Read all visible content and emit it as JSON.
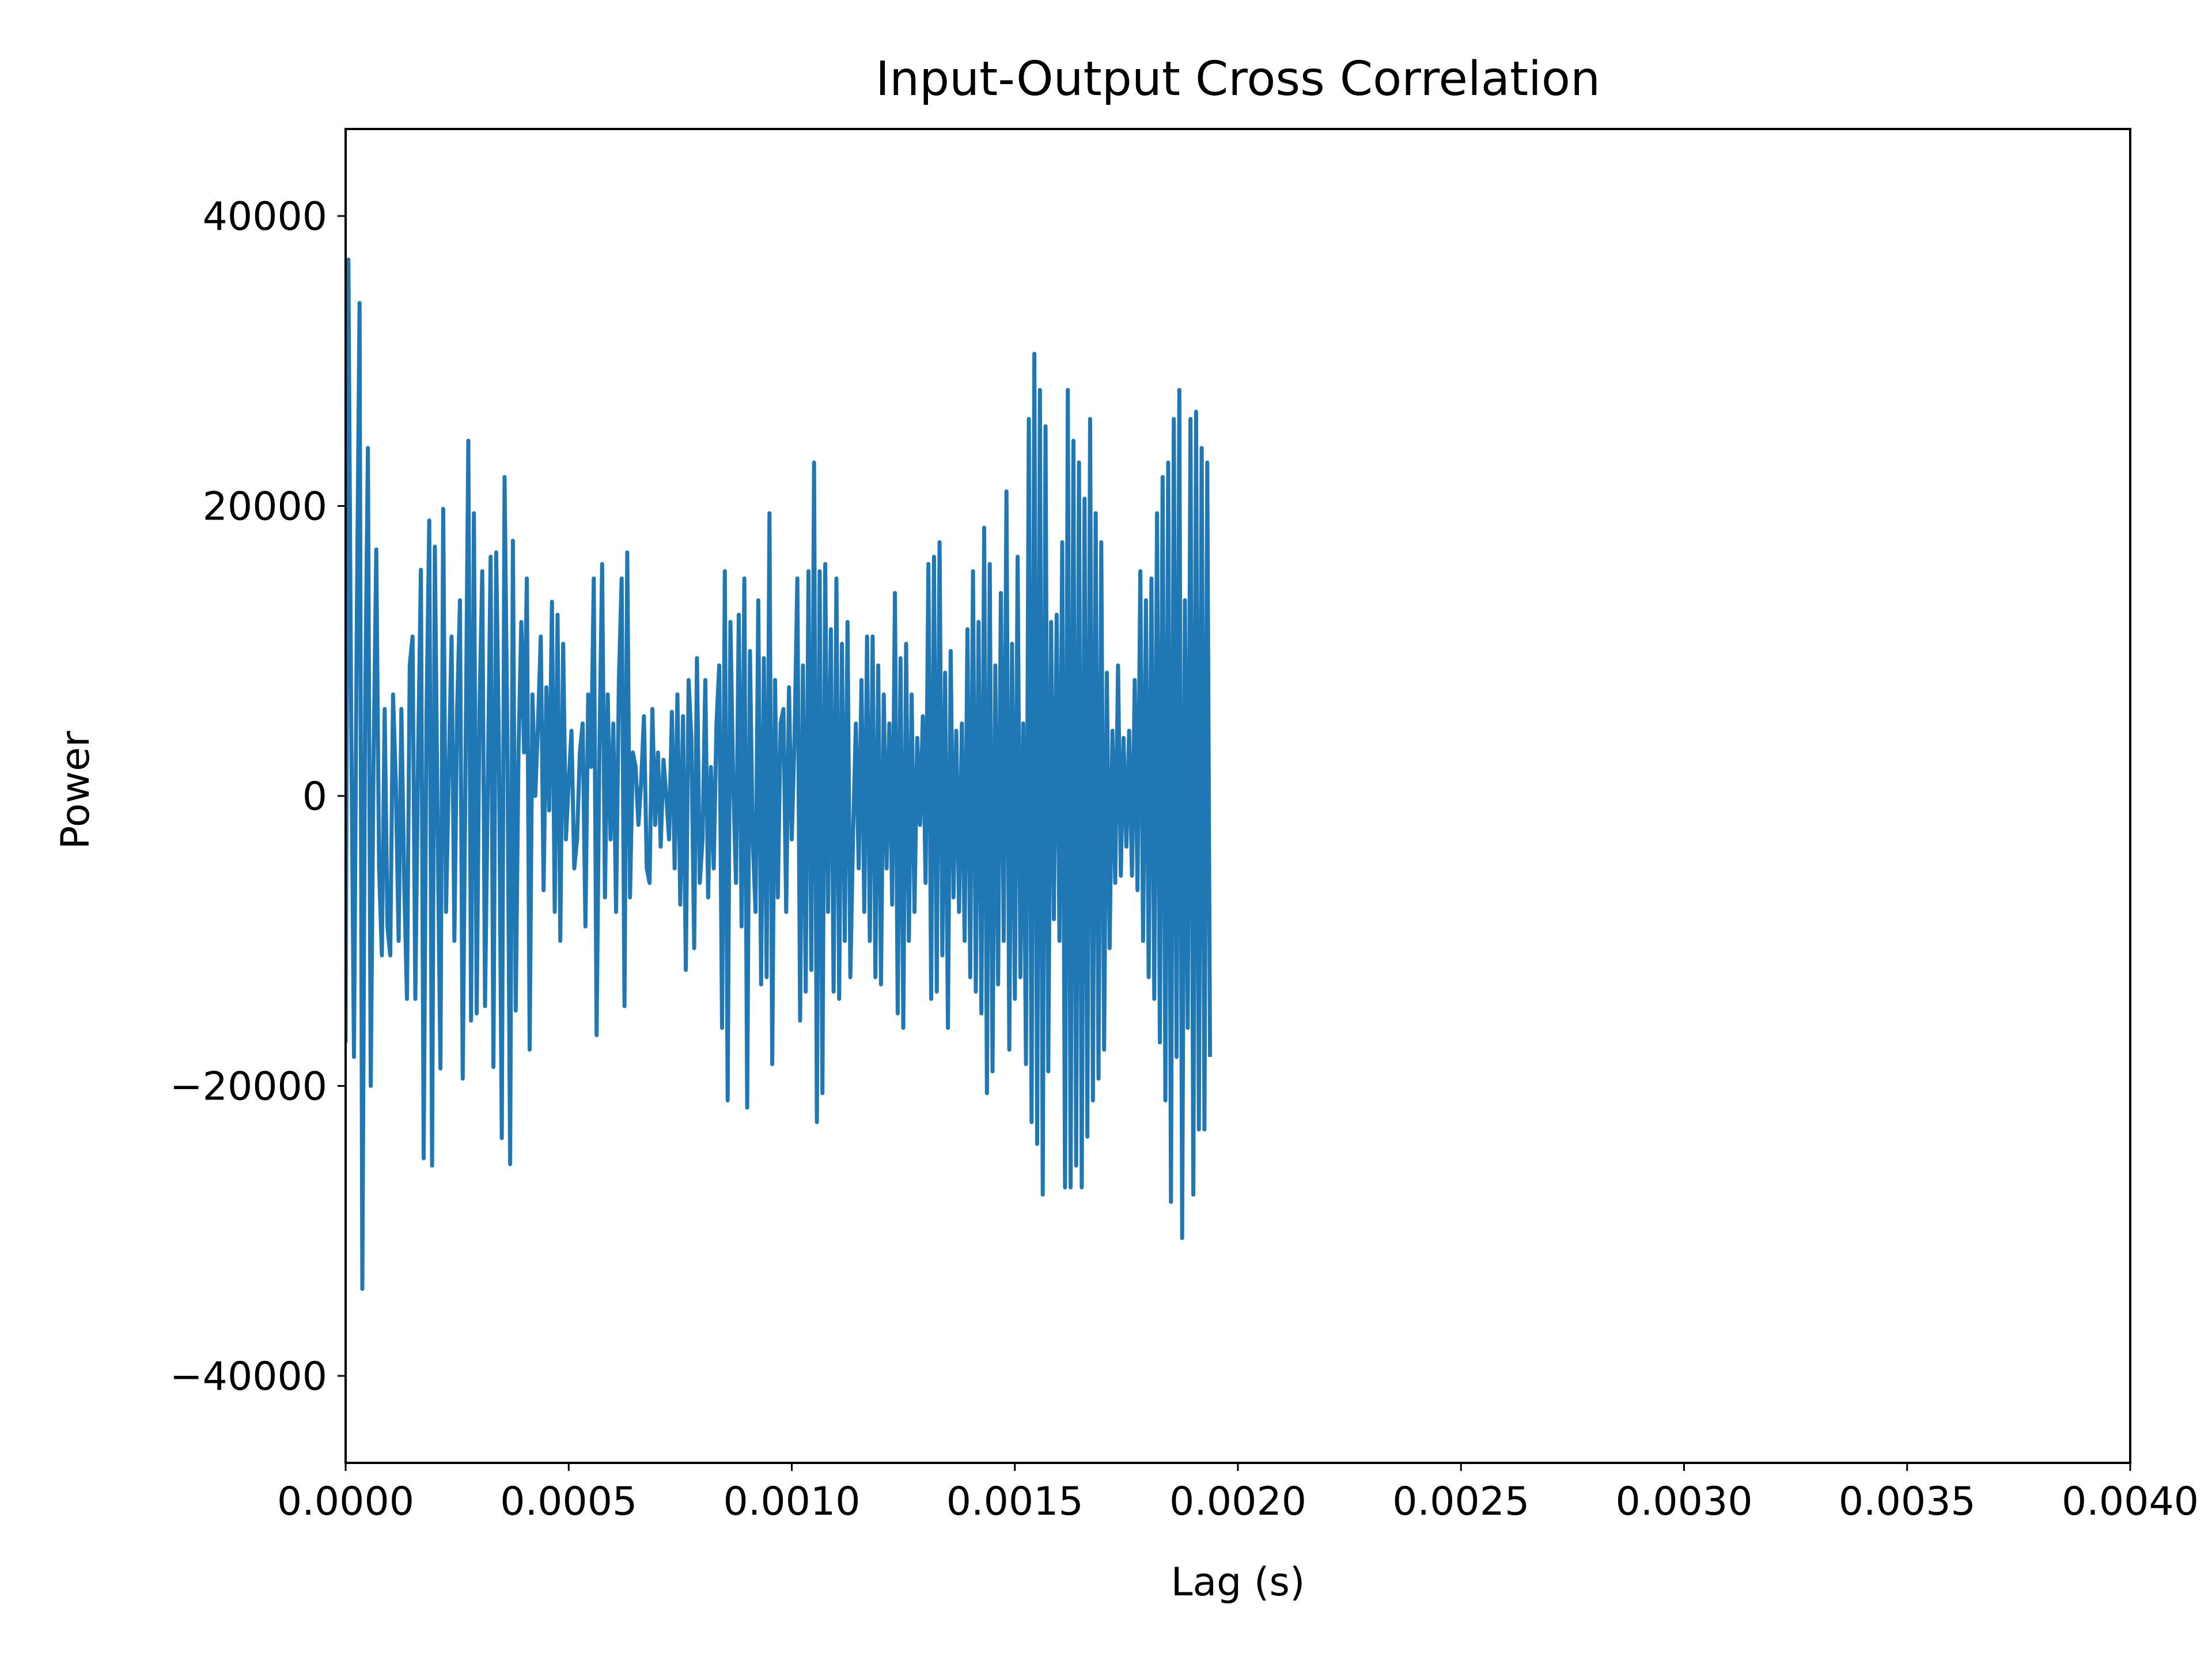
{
  "chart_data": {
    "type": "line",
    "title": "Input-Output Cross Correlation",
    "xlabel": "Lag (s)",
    "ylabel": "Power",
    "xlim": [
      0.0,
      0.004
    ],
    "ylim": [
      -46000,
      46000
    ],
    "xticks": [
      0.0,
      0.0005,
      0.001,
      0.0015,
      0.002,
      0.0025,
      0.003,
      0.0035,
      0.004
    ],
    "xtick_labels": [
      "0.0000",
      "0.0005",
      "0.0010",
      "0.0015",
      "0.0020",
      "0.0025",
      "0.0030",
      "0.0035",
      "0.0040"
    ],
    "yticks": [
      -40000,
      -20000,
      0,
      20000,
      40000
    ],
    "ytick_labels": [
      "−40000",
      "−20000",
      "0",
      "20000",
      "40000"
    ],
    "grid": false,
    "legend": "none",
    "line_color": "#1f77b4",
    "series": [
      {
        "x_start": 0.0,
        "x_step": 6.25e-06,
        "values": [
          -17000,
          37000,
          5000,
          -18000,
          12000,
          34000,
          -34000,
          6000,
          24000,
          -20000,
          2000,
          17000,
          -5000,
          -11000,
          6000,
          -9000,
          -11000,
          7000,
          1000,
          -10000,
          6000,
          -6000,
          -14000,
          9000,
          11000,
          -14000,
          3000,
          15600,
          -25000,
          5500,
          19000,
          -25500,
          17200,
          -2000,
          -18800,
          19800,
          -8000,
          1500,
          11000,
          -10000,
          6000,
          13500,
          -19500,
          2000,
          24500,
          -15500,
          19500,
          -15000,
          6000,
          15500,
          -14500,
          1000,
          16500,
          -18700,
          16800,
          3000,
          -23600,
          22000,
          4000,
          -25400,
          17600,
          -14800,
          3000,
          12000,
          3000,
          15000,
          -17500,
          7000,
          0,
          5000,
          11000,
          -6500,
          7500,
          -1000,
          13400,
          -8000,
          12500,
          -10000,
          10500,
          -3000,
          1000,
          4500,
          -5000,
          -3000,
          3000,
          5000,
          -9000,
          7000,
          2000,
          15000,
          -16500,
          3000,
          16000,
          -7000,
          7000,
          -3000,
          5000,
          -8000,
          8000,
          15000,
          -14500,
          16800,
          -7000,
          3000,
          2000,
          -2000,
          1000,
          5500,
          -5000,
          -6000,
          6000,
          -2000,
          3000,
          -3500,
          2500,
          0,
          -3000,
          5800,
          -5000,
          7000,
          -7500,
          5500,
          -12000,
          8000,
          4000,
          -10500,
          9500,
          -6000,
          -3000,
          8000,
          -7000,
          2000,
          -5000,
          5000,
          9000,
          -16000,
          15500,
          -21000,
          12000,
          1000,
          -6000,
          12500,
          -9000,
          15000,
          -21500,
          10000,
          -3000,
          -8000,
          13500,
          -13000,
          9500,
          -12500,
          19500,
          -18500,
          8000,
          -7000,
          5000,
          6000,
          -8000,
          7500,
          -3000,
          4000,
          15000,
          -15500,
          9000,
          -13500,
          15500,
          -12000,
          23000,
          -22500,
          15500,
          -20500,
          16000,
          -8000,
          11500,
          -13500,
          15000,
          -14000,
          10500,
          -10000,
          12000,
          -12500,
          -2500,
          5000,
          -5000,
          8000,
          -8000,
          11000,
          -10000,
          11000,
          -12500,
          9000,
          -13000,
          7000,
          -5000,
          5000,
          -7500,
          14000,
          -15000,
          9500,
          -16000,
          10500,
          -10000,
          7000,
          -8000,
          4000,
          -2000,
          5500,
          -6000,
          16000,
          -14000,
          16500,
          -13500,
          17500,
          -11000,
          8500,
          -16000,
          10000,
          -7000,
          4500,
          -8000,
          5000,
          -10000,
          11500,
          -12500,
          15500,
          -13500,
          12000,
          -15000,
          18500,
          -20500,
          16000,
          -19000,
          9000,
          -13000,
          14000,
          -10000,
          21000,
          -17500,
          10500,
          -14000,
          16500,
          -12500,
          5000,
          -18500,
          26000,
          -22500,
          30500,
          -24000,
          28000,
          -27500,
          25500,
          -19000,
          12000,
          -8500,
          12500,
          -10000,
          17500,
          -27000,
          28000,
          -27000,
          24500,
          -25500,
          23000,
          -27000,
          20500,
          -23500,
          26000,
          -21000,
          19500,
          -19500,
          17500,
          -17500,
          8500,
          -10500,
          4500,
          -6000,
          9000,
          -5500,
          4000,
          -3500,
          4500,
          -5500,
          8000,
          -6500,
          15500,
          -10000,
          13500,
          -12500,
          15000,
          -14000,
          19500,
          -17000,
          22000,
          -21000,
          23000,
          -28000,
          26000,
          -18000,
          28000,
          -30500,
          13500,
          -16000,
          26000,
          -27500,
          26500,
          -23000,
          24000,
          -23000,
          23000,
          -18000
        ]
      }
    ]
  }
}
